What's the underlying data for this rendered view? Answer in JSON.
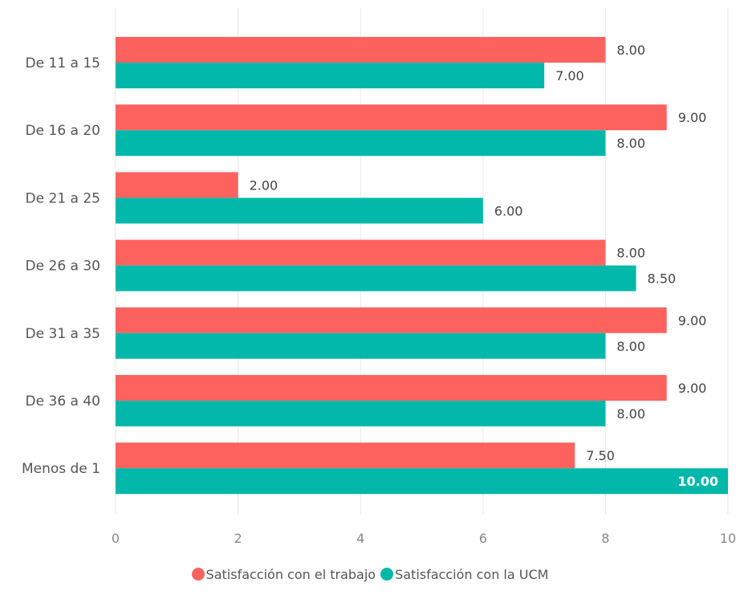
{
  "chart_data": {
    "type": "bar",
    "orientation": "horizontal",
    "categories": [
      "De 11 a 15",
      "De 16 a 20",
      "De 21 a 25",
      "De 26 a 30",
      "De 31 a 35",
      "De 36 a 40",
      "Menos de 1"
    ],
    "series": [
      {
        "name": "Satisfacción con el trabajo",
        "color": "#fd625e",
        "values": [
          8,
          9,
          2,
          8,
          9,
          9,
          7.5
        ]
      },
      {
        "name": "Satisfacción con la UCM",
        "color": "#01b8aa",
        "values": [
          7,
          8,
          6,
          8.5,
          8,
          8,
          10
        ]
      }
    ],
    "data_labels": [
      [
        "8.00",
        "9.00",
        "2.00",
        "8.00",
        "9.00",
        "9.00",
        "7.50"
      ],
      [
        "7.00",
        "8.00",
        "6.00",
        "8.50",
        "8.00",
        "8.00",
        "10.00"
      ]
    ],
    "xlim": [
      0,
      10
    ],
    "x_ticks": [
      0,
      2,
      4,
      6,
      8,
      10
    ],
    "x_tick_labels": [
      "0",
      "2",
      "4",
      "6",
      "8",
      "10"
    ],
    "grid": true,
    "legend_position": "bottom-center"
  }
}
